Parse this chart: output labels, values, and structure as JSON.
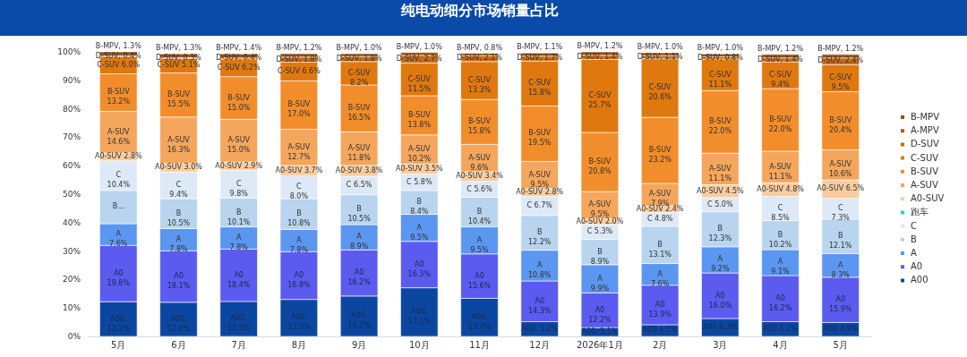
{
  "chart_data": {
    "type": "bar",
    "stacked": true,
    "title": "纯电动细分市场销量占比",
    "categories": [
      "5月",
      "6月",
      "7月",
      "8月",
      "9月",
      "10月",
      "11月",
      "12月",
      "2026年1月",
      "2月",
      "3月",
      "4月",
      "5月"
    ],
    "ylim": [
      0,
      100
    ],
    "yticks": [
      {
        "value": 0,
        "label": "0%"
      },
      {
        "value": 10,
        "label": "10%"
      },
      {
        "value": 20,
        "label": "20%"
      },
      {
        "value": 30,
        "label": "30%"
      },
      {
        "value": 40,
        "label": "40%"
      },
      {
        "value": 50,
        "label": "50%"
      },
      {
        "value": 60,
        "label": "60%"
      },
      {
        "value": 70,
        "label": "70%"
      },
      {
        "value": 80,
        "label": "80%"
      },
      {
        "value": 90,
        "label": "90%"
      },
      {
        "value": 100,
        "label": "100%"
      }
    ],
    "grid": false,
    "legend": "right",
    "series": [
      {
        "name": "A00",
        "color": "#0b47a1",
        "values": [
          12.2,
          12.0,
          12.3,
          13.0,
          14.2,
          17.1,
          13.4,
          5.2,
          3.1,
          4.1,
          6.3,
          5.2,
          4.9
        ],
        "value_labels": [
          "A00,\n12.2%",
          "A00,\n12.0%",
          "A00,\n12.3%",
          "A00,\n13.0%",
          "A00,\n14.2%",
          "A00,\n17.1%",
          "A00,\n13.4%",
          "A00,\n5.2%",
          "A00,\n3.1%",
          "A00\n4.1%",
          "A00\n6.3%",
          "A00\n5.2%",
          "A00\n4.9%"
        ]
      },
      {
        "name": "A0",
        "color": "#5b5bf0",
        "values": [
          19.8,
          18.1,
          18.4,
          16.8,
          16.2,
          16.3,
          15.6,
          14.3,
          12.2,
          13.9,
          16.0,
          16.2,
          15.9
        ],
        "value_labels": [
          "A0\n19.8%",
          "A0\n18.1%",
          "A0\n18.4%",
          "A0\n16.8%",
          "A0\n16.2%",
          "A0\n16.3%",
          "A0\n15.6%",
          "A0\n14.3%",
          "A0\n12.2%",
          "A0\n13.9%",
          "A0\n16.0%",
          "A0\n16.2%",
          "A0\n15.9%"
        ]
      },
      {
        "name": "A",
        "color": "#5b96f0",
        "values": [
          7.6,
          7.8,
          7.8,
          7.8,
          8.9,
          9.5,
          9.5,
          10.8,
          9.9,
          7.6,
          9.2,
          9.1,
          8.3
        ],
        "value_labels": [
          "A\n7.6%",
          "A\n7.8%",
          "A\n7.8%",
          "A\n7.8%",
          "A\n8.9%",
          "A\n9.5%",
          "A\n9.5%",
          "A\n10.8%",
          "A\n9.9%",
          "A\n7.6%",
          "A\n9.2%",
          "A\n9.1%",
          "A\n8.3%"
        ]
      },
      {
        "name": "B",
        "color": "#b8d4ee",
        "values": [
          11.7,
          10.5,
          10.1,
          10.8,
          10.5,
          8.4,
          10.4,
          12.2,
          8.9,
          13.1,
          12.3,
          10.2,
          12.1
        ],
        "value_labels": [
          "B...",
          "B\n10.5%",
          "B\n10.1%",
          "B\n10.8%",
          "B\n10.5%",
          "B\n8.4%",
          "B\n10.4%",
          "B\n12.2%",
          "B\n8.9%",
          "B\n13.1%",
          "B\n12.3%",
          "B\n10.2%",
          "B\n12.1%"
        ]
      },
      {
        "name": "C",
        "color": "#dde9f6",
        "values": [
          10.4,
          9.4,
          9.8,
          8.0,
          6.5,
          5.8,
          5.6,
          6.7,
          5.3,
          4.8,
          5.0,
          8.5,
          7.3
        ],
        "value_labels": [
          "C\n10.4%",
          "C\n9.4%",
          "C\n9.8%",
          "C\n8.0%",
          "C\n6.5%",
          "C\n5.8%",
          "C\n5.6%",
          "C\n6.7%",
          "C\n5.3%",
          "C\n4.8%",
          "C\n5.0%",
          "C\n8.5%",
          "C\n7.3%"
        ]
      },
      {
        "name": "跑车",
        "color": "#2fd9a8",
        "values": [
          null,
          null,
          null,
          null,
          null,
          null,
          null,
          null,
          null,
          null,
          null,
          null,
          null
        ]
      },
      {
        "name": "A0-SUV",
        "color": "#f9cca0",
        "values": [
          2.8,
          3.0,
          2.9,
          3.7,
          3.8,
          3.5,
          3.4,
          2.8,
          2.0,
          2.4,
          4.5,
          4.8,
          6.5
        ],
        "value_labels": [
          "A0-SUV\n2.8%",
          "A0-SUV\n3.0%",
          "A0-SUV\n2.9%",
          "A0-SUV\n3.7%",
          "A0-SUV\n3.8%",
          "A0-SUV\n3.5%",
          "A0-SUV\n3.4%",
          "A0-SUV\n2.8%",
          "A0-SUV\n2.0%",
          "A0-SUV\n2.4%",
          "A0-SUV\n4.5%",
          "A0-SUV\n4.8%",
          "A0-SUV\n6.5%"
        ]
      },
      {
        "name": "A-SUV",
        "color": "#f4a65c",
        "values": [
          14.6,
          16.3,
          15.0,
          12.7,
          11.8,
          10.2,
          9.6,
          9.5,
          9.5,
          7.9,
          11.1,
          11.1,
          10.6
        ],
        "value_labels": [
          "A-SUV\n14.6%",
          "A-SUV\n16.3%",
          "A-SUV\n15.0%",
          "A-SUV\n12.7%",
          "A-SUV\n11.8%",
          "A-SUV\n10.2%",
          "A-SUV\n9.6%",
          "A-SUV\n9.5%",
          "A-SUV\n9.5%",
          "A-SUV\n7.9%",
          "A-SUV\n11.1%",
          "A-SUV\n11.1%",
          "A-SUV\n10.6%"
        ]
      },
      {
        "name": "B-SUV",
        "color": "#f28d2c",
        "values": [
          13.2,
          15.5,
          15.0,
          17.0,
          16.5,
          13.8,
          15.8,
          19.5,
          20.8,
          23.2,
          22.0,
          22.0,
          20.4
        ],
        "value_labels": [
          "B-SUV\n13.2%",
          "B-SUV\n15.5%",
          "B-SUV\n15.0%",
          "B-SUV\n17.0%",
          "B-SUV\n16.5%",
          "B-SUV\n13.8%",
          "B-SUV\n15.8%",
          "B-SUV\n19.5%",
          "B-SUV\n20.8%",
          "B-SUV\n23.2%",
          "B-SUV\n22.0%",
          "B-SUV\n22.0%",
          "B-SUV\n20.4%"
        ]
      },
      {
        "name": "C-SUV",
        "color": "#e07810",
        "values": [
          6.0,
          5.1,
          6.2,
          6.6,
          8.2,
          11.5,
          13.3,
          15.8,
          25.7,
          20.6,
          11.1,
          9.4,
          9.5
        ],
        "value_labels": [
          "C-SUV\n6.0%",
          "C-SUV\n5.1%",
          "C-SUV\n6.2%",
          "C-SUV\n6.6%",
          "C-SUV\n8.2%",
          "C-SUV\n11.5%",
          "C-SUV\n13.3%",
          "C-SUV\n15.8%",
          "C-SUV\n25.7%",
          "C-SUV\n20.6%",
          "C-SUV\n11.1%",
          "C-SUV\n9.4%",
          "C-SUV\n9.5%"
        ]
      },
      {
        "name": "D-SUV",
        "color": "#c86a10",
        "values": [
          0.4,
          0.3,
          0.4,
          1.8,
          1.8,
          2.7,
          2.1,
          1.7,
          1.4,
          1.1,
          0.8,
          1.4,
          2.4
        ],
        "value_labels": [
          "D-SUV, 0.4%",
          "D-SUV, 0.3%",
          "D-SUV, 0.4%",
          "D-SUV, 1.8%",
          "D-SUV, 1.8%",
          "D-SUV, 2.7%",
          "D-SUV, 2.1%",
          "D-SUV, 1.7%",
          "D-SUV, 1.4%",
          "D-SUV, 1.1%",
          "D-SUV, 0.8%",
          "D-SUV, 1.4%",
          "D-SUV, 2.4%"
        ]
      },
      {
        "name": "A-MPV",
        "color": "#b55a10",
        "values": [
          null,
          null,
          null,
          null,
          null,
          null,
          null,
          null,
          null,
          null,
          null,
          null,
          null
        ]
      },
      {
        "name": "B-MPV",
        "color": "#9a4e12",
        "values": [
          1.3,
          1.3,
          1.4,
          1.2,
          1.0,
          1.0,
          0.8,
          1.1,
          1.2,
          1.0,
          1.0,
          1.2,
          1.2
        ],
        "value_labels": [
          "B-MPV, 1.3%",
          "B-MPV, 1.3%",
          "B-MPV, 1.4%",
          "B-MPV, 1.2%",
          "B-MPV, 1.0%",
          "B-MPV, 1.0%",
          "B-MPV, 0.8%",
          "B-MPV, 1.1%",
          "B-MPV, 1.2%",
          "B-MPV, 1.0%",
          "B-MPV, 1.0%",
          "B-MPV, 1.2%",
          "B-MPV, 1.2%"
        ]
      }
    ]
  }
}
